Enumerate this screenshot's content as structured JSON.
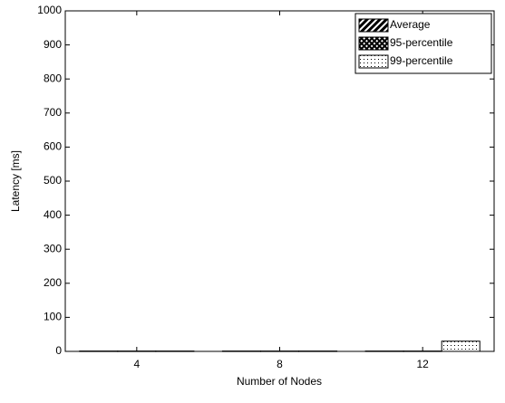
{
  "chart_data": {
    "type": "bar",
    "xlabel": "Number of Nodes",
    "ylabel": "Latency [ms]",
    "categories": [
      "4",
      "8",
      "12"
    ],
    "series": [
      {
        "name": "Average",
        "values": [
          1,
          1,
          1
        ]
      },
      {
        "name": "95-percentile",
        "values": [
          1,
          1,
          1
        ]
      },
      {
        "name": "99-percentile",
        "values": [
          1,
          1,
          30
        ]
      }
    ],
    "ylim": [
      0,
      1000
    ],
    "yticks": [
      0,
      100,
      200,
      300,
      400,
      500,
      600,
      700,
      800,
      900,
      1000
    ],
    "legend": "northeast"
  }
}
